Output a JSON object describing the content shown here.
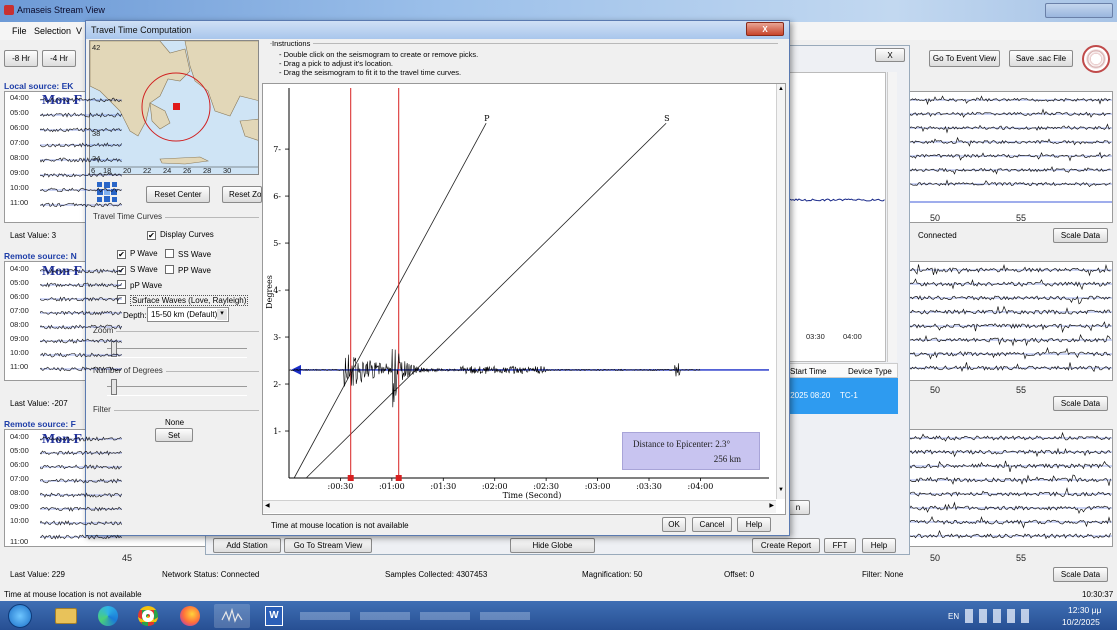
{
  "app": {
    "title": "Amaseis Stream View",
    "menu": [
      "File",
      "Selection",
      "V"
    ],
    "time_buttons": [
      "-8 Hr",
      "-4 Hr"
    ],
    "go_event": "Go To Event View",
    "save_sac": "Save .sac File"
  },
  "sources": [
    {
      "title": "Local source: EK",
      "hours": [
        "04:00",
        "05:00",
        "06:00",
        "07:00",
        "08:00",
        "09:00",
        "10:00",
        "11:00"
      ],
      "date": "Mon F",
      "last_value": "Last Value:  3",
      "status": "Connected",
      "scale": "Scale Data"
    },
    {
      "title": "Remote source: N",
      "hours": [
        "04:00",
        "05:00",
        "06:00",
        "07:00",
        "08:00",
        "09:00",
        "10:00",
        "11:00"
      ],
      "date": "Mon F",
      "last_value": "Last Value:  -207",
      "scale": "Scale Data"
    },
    {
      "title": "Remote source: F",
      "hours": [
        "04:00",
        "05:00",
        "06:00",
        "07:00",
        "08:00",
        "09:00",
        "10:00",
        "11:00"
      ],
      "date": "Mon F",
      "last_value": "Last Value:  229",
      "scale": "Scale Data"
    }
  ],
  "right_ticks": [
    "50",
    "55"
  ],
  "bottom_ticks": [
    "45",
    "50",
    "55"
  ],
  "middle": {
    "times": [
      "03:30",
      "04:00"
    ],
    "col_start": "Start Time",
    "col_device": "Device Type",
    "row_date": "/2025 08:20",
    "row_device": "TC-1",
    "btn_n": "n"
  },
  "status": {
    "network": "Network Status:  Connected",
    "samples": "Samples Collected:  4307453",
    "magnification": "Magnification:  50",
    "offset": "Offset:  0",
    "filter": "Filter:  None",
    "mouse": "Time at mouse location is not available",
    "clock": "10:30:37"
  },
  "bottom_buttons": {
    "add_station": "Add Station",
    "go_stream": "Go To Stream View",
    "hide_globe": "Hide Globe",
    "create_report": "Create Report",
    "fft": "FFT",
    "help": "Help"
  },
  "dialog": {
    "title": "Travel Time Computation",
    "close": "X",
    "instructions_title": "Instructions",
    "instructions": [
      "- Double click on the seismogram to create or remove picks.",
      "- Drag a pick to adjust it's location.",
      "- Drag the seismogram to fit it to the travel time curves."
    ],
    "map_lat": [
      "42",
      "38",
      "34"
    ],
    "map_lon": [
      "6",
      "18",
      "20",
      "22",
      "24",
      "26",
      "28",
      "30"
    ],
    "reset_center": "Reset Center",
    "reset_zoom": "Reset Zoo",
    "ttc_group": "Travel Time Curves",
    "display_curves": "Display Curves",
    "p_wave": "P Wave",
    "ss_wave": "SS Wave",
    "s_wave": "S Wave",
    "pp_wave": "PP Wave",
    "pp_small": "pP Wave",
    "surface": "Surface Waves (Love, Rayleigh)",
    "depth_label": "Depth:",
    "depth_value": "15-50 km (Default)",
    "zoom": "Zoom",
    "degrees": "Number of Degrees",
    "filter": "Filter",
    "filter_value": "None",
    "set": "Set",
    "mouse_status": "Time at mouse location is not available",
    "ok": "OK",
    "cancel": "Cancel",
    "help": "Help",
    "info_line1": "Distance to Epicenter: 2.3°",
    "info_line2": "256 km"
  },
  "taskbar": {
    "lang": "EN",
    "time": "12:30 μμ",
    "date": "10/2/2025"
  },
  "chart_data": {
    "type": "line",
    "title": "",
    "xlabel": "Time (Second)",
    "ylabel": "Degrees",
    "x_ticks": [
      ":00:30",
      ":01:00",
      ":01:30",
      ":02:00",
      ":02:30",
      ":03:00",
      ":03:30",
      ":04:00"
    ],
    "y_ticks": [
      "1",
      "2",
      "3",
      "4",
      "5",
      "6",
      "7"
    ],
    "xlim": [
      0,
      280
    ],
    "ylim": [
      0,
      8.3
    ],
    "series": [
      {
        "name": "P",
        "x": [
          3,
          115
        ],
        "y": [
          0,
          7.55
        ]
      },
      {
        "name": "S",
        "x": [
          10,
          220
        ],
        "y": [
          0,
          7.55
        ]
      }
    ],
    "epicenter_degrees": 2.3,
    "picks_seconds": [
      36,
      64
    ]
  }
}
